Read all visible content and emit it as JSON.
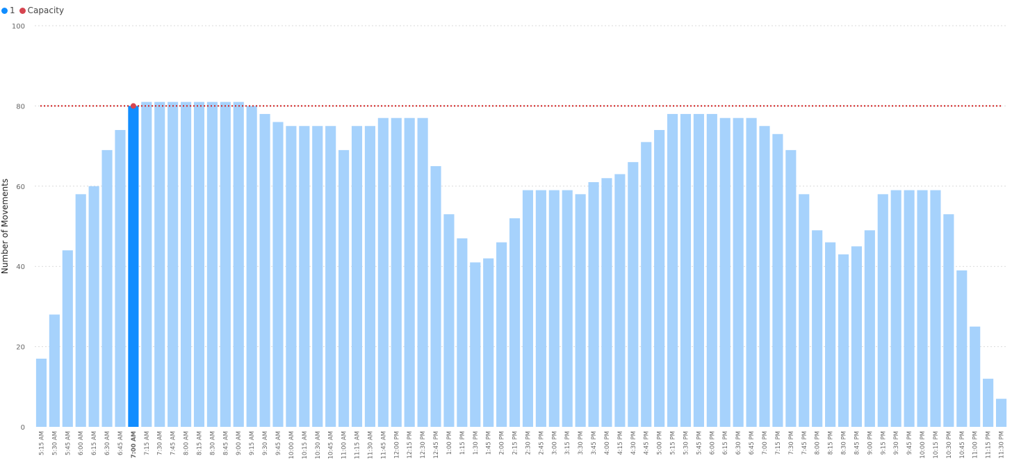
{
  "legend": {
    "items": [
      {
        "label": "1",
        "color": "#118DFF"
      },
      {
        "label": "Capacity",
        "color": "#D64550"
      }
    ]
  },
  "colors": {
    "bar": "#A6D2FC",
    "highlight_bar": "#118DFF",
    "capacity_line": "#D01C1C",
    "gridline": "#D9D9D9"
  },
  "chart_data": {
    "type": "bar",
    "title": "",
    "xlabel": "",
    "ylabel": "Number of Movements",
    "ylim": [
      0,
      100
    ],
    "yticks": [
      0,
      20,
      40,
      60,
      80,
      100
    ],
    "grid": true,
    "legend_position": "top-left",
    "highlighted_category": "7:00 AM",
    "capacity": 80,
    "categories": [
      "5:15 AM",
      "5:30 AM",
      "5:45 AM",
      "6:00 AM",
      "6:15 AM",
      "6:30 AM",
      "6:45 AM",
      "7:00 AM",
      "7:15 AM",
      "7:30 AM",
      "7:45 AM",
      "8:00 AM",
      "8:15 AM",
      "8:30 AM",
      "8:45 AM",
      "9:00 AM",
      "9:15 AM",
      "9:30 AM",
      "9:45 AM",
      "10:00 AM",
      "10:15 AM",
      "10:30 AM",
      "10:45 AM",
      "11:00 AM",
      "11:15 AM",
      "11:30 AM",
      "11:45 AM",
      "12:00 PM",
      "12:15 PM",
      "12:30 PM",
      "12:45 PM",
      "1:00 PM",
      "1:15 PM",
      "1:30 PM",
      "1:45 PM",
      "2:00 PM",
      "2:15 PM",
      "2:30 PM",
      "2:45 PM",
      "3:00 PM",
      "3:15 PM",
      "3:30 PM",
      "3:45 PM",
      "4:00 PM",
      "4:15 PM",
      "4:30 PM",
      "4:45 PM",
      "5:00 PM",
      "5:15 PM",
      "5:30 PM",
      "5:45 PM",
      "6:00 PM",
      "6:15 PM",
      "6:30 PM",
      "6:45 PM",
      "7:00 PM",
      "7:15 PM",
      "7:30 PM",
      "7:45 PM",
      "8:00 PM",
      "8:15 PM",
      "8:30 PM",
      "8:45 PM",
      "9:00 PM",
      "9:15 PM",
      "9:30 PM",
      "9:45 PM",
      "10:00 PM",
      "10:15 PM",
      "10:30 PM",
      "10:45 PM",
      "11:00 PM",
      "11:15 PM",
      "11:30 PM"
    ],
    "series": [
      {
        "name": "1",
        "values": [
          17,
          28,
          44,
          58,
          60,
          69,
          74,
          80,
          81,
          81,
          81,
          81,
          81,
          81,
          81,
          81,
          80,
          78,
          76,
          75,
          75,
          75,
          75,
          69,
          75,
          75,
          77,
          77,
          77,
          77,
          65,
          53,
          47,
          41,
          42,
          46,
          52,
          59,
          59,
          59,
          59,
          58,
          61,
          62,
          63,
          66,
          71,
          74,
          78,
          78,
          78,
          78,
          77,
          77,
          77,
          75,
          73,
          69,
          58,
          49,
          46,
          43,
          45,
          49,
          58,
          59,
          59,
          59,
          59,
          53,
          39,
          25,
          12,
          7
        ]
      },
      {
        "name": "Capacity",
        "values": [
          80,
          80,
          80,
          80,
          80,
          80,
          80,
          80,
          80,
          80,
          80,
          80,
          80,
          80,
          80,
          80,
          80,
          80,
          80,
          80,
          80,
          80,
          80,
          80,
          80,
          80,
          80,
          80,
          80,
          80,
          80,
          80,
          80,
          80,
          80,
          80,
          80,
          80,
          80,
          80,
          80,
          80,
          80,
          80,
          80,
          80,
          80,
          80,
          80,
          80,
          80,
          80,
          80,
          80,
          80,
          80,
          80,
          80,
          80,
          80,
          80,
          80,
          80,
          80,
          80,
          80,
          80,
          80,
          80,
          80,
          80,
          80,
          80,
          80
        ]
      }
    ]
  }
}
